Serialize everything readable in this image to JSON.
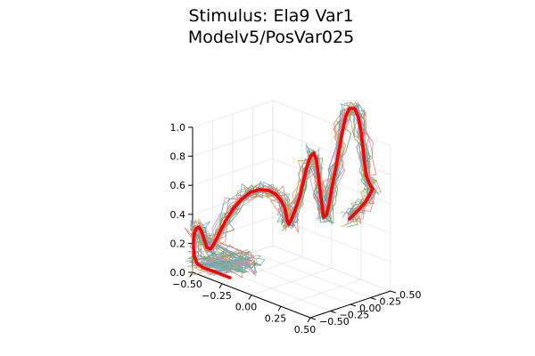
{
  "chart_data": {
    "type": "line3d",
    "title": [
      "Stimulus: Ela9 Var1",
      "Modelv5/PosVar025"
    ],
    "x_ticks": [
      "−0.50",
      "−0.25",
      "0.00",
      "0.25",
      "0.50"
    ],
    "y_ticks": [
      "−0.50",
      "−0.25",
      "0.00",
      "0.25",
      "0.50"
    ],
    "z_ticks": [
      "0.0",
      "0.2",
      "0.4",
      "0.6",
      "0.8",
      "1.0"
    ],
    "xlim": [
      -0.5,
      0.5
    ],
    "ylim": [
      -0.5,
      0.5
    ],
    "zlim": [
      0,
      1
    ],
    "grid": true,
    "legend": "none",
    "stimulus_color": "#ff0000",
    "sample_colors": [
      "#6aa0d8",
      "#e07b6b",
      "#5aa35a",
      "#c19ad4",
      "#c9a34f",
      "#63b7b7"
    ]
  }
}
